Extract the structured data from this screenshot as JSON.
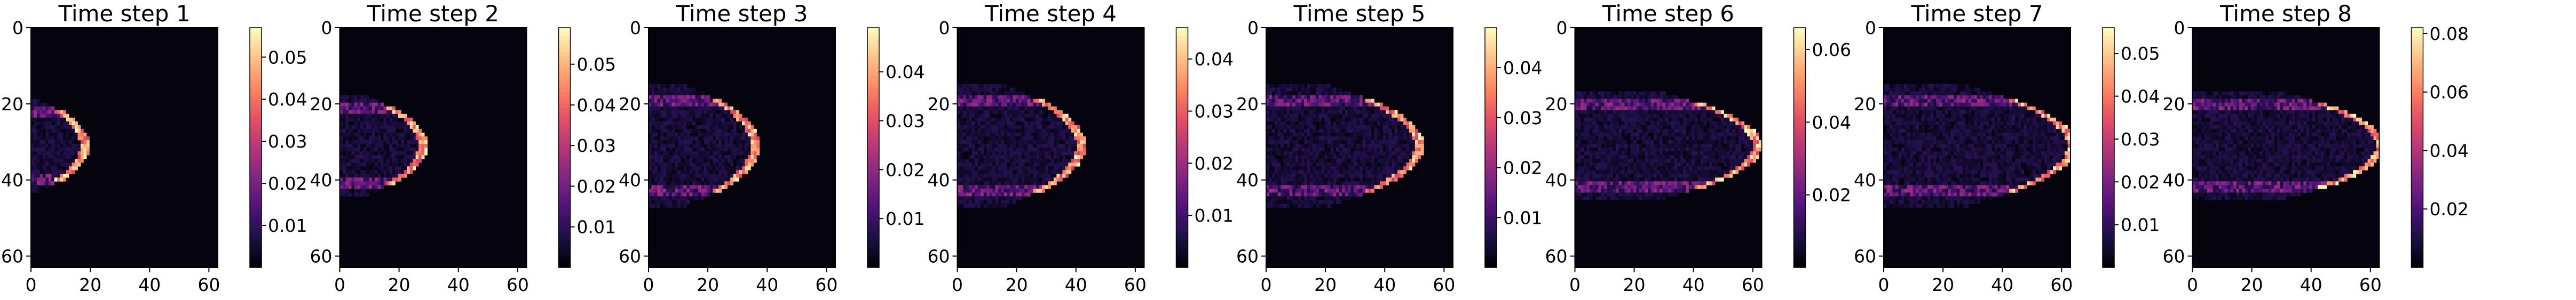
{
  "chart_data": [
    {
      "type": "heatmap",
      "title": "Time step 1",
      "xlim": [
        0,
        63
      ],
      "ylim": [
        63,
        0
      ],
      "xticks": [
        0,
        20,
        40,
        60
      ],
      "yticks": [
        0,
        20,
        40,
        60
      ],
      "colormap": "magma",
      "colorbar": {
        "min": 0,
        "max": 0.057,
        "ticks": [
          0.01,
          0.02,
          0.03,
          0.04,
          0.05
        ]
      },
      "front_x": 18,
      "front_halfwidth": 9
    },
    {
      "type": "heatmap",
      "title": "Time step 2",
      "xlim": [
        0,
        63
      ],
      "ylim": [
        63,
        0
      ],
      "xticks": [
        0,
        20,
        40,
        60
      ],
      "yticks": [
        0,
        20,
        40,
        60
      ],
      "colormap": "magma",
      "colorbar": {
        "min": 0,
        "max": 0.059,
        "ticks": [
          0.01,
          0.02,
          0.03,
          0.04,
          0.05
        ]
      },
      "front_x": 28,
      "front_halfwidth": 10
    },
    {
      "type": "heatmap",
      "title": "Time step 3",
      "xlim": [
        0,
        63
      ],
      "ylim": [
        63,
        0
      ],
      "xticks": [
        0,
        20,
        40,
        60
      ],
      "yticks": [
        0,
        20,
        40,
        60
      ],
      "colormap": "magma",
      "colorbar": {
        "min": 0,
        "max": 0.049,
        "ticks": [
          0.01,
          0.02,
          0.03,
          0.04
        ]
      },
      "front_x": 36,
      "front_halfwidth": 12
    },
    {
      "type": "heatmap",
      "title": "Time step 4",
      "xlim": [
        0,
        63
      ],
      "ylim": [
        63,
        0
      ],
      "xticks": [
        0,
        20,
        40,
        60
      ],
      "yticks": [
        0,
        20,
        40,
        60
      ],
      "colormap": "magma",
      "colorbar": {
        "min": 0,
        "max": 0.046,
        "ticks": [
          0.01,
          0.02,
          0.03,
          0.04
        ]
      },
      "front_x": 42,
      "front_halfwidth": 12
    },
    {
      "type": "heatmap",
      "title": "Time step 5",
      "xlim": [
        0,
        63
      ],
      "ylim": [
        63,
        0
      ],
      "xticks": [
        0,
        20,
        40,
        60
      ],
      "yticks": [
        0,
        20,
        40,
        60
      ],
      "colormap": "magma",
      "colorbar": {
        "min": 0,
        "max": 0.048,
        "ticks": [
          0.01,
          0.02,
          0.03,
          0.04
        ]
      },
      "front_x": 52,
      "front_halfwidth": 12
    },
    {
      "type": "heatmap",
      "title": "Time step 6",
      "xlim": [
        0,
        63
      ],
      "ylim": [
        63,
        0
      ],
      "xticks": [
        0,
        20,
        40,
        60
      ],
      "yticks": [
        0,
        20,
        40,
        60
      ],
      "colormap": "magma",
      "colorbar": {
        "min": 0,
        "max": 0.066,
        "ticks": [
          0.02,
          0.04,
          0.06
        ]
      },
      "front_x": 62,
      "front_halfwidth": 11
    },
    {
      "type": "heatmap",
      "title": "Time step 7",
      "xlim": [
        0,
        63
      ],
      "ylim": [
        63,
        0
      ],
      "xticks": [
        0,
        20,
        40,
        60
      ],
      "yticks": [
        0,
        20,
        40,
        60
      ],
      "colormap": "magma",
      "colorbar": {
        "min": 0,
        "max": 0.056,
        "ticks": [
          0.01,
          0.02,
          0.03,
          0.04,
          0.05
        ]
      },
      "front_x": 64,
      "front_halfwidth": 12
    },
    {
      "type": "heatmap",
      "title": "Time step 8",
      "xlim": [
        0,
        63
      ],
      "ylim": [
        63,
        0
      ],
      "xticks": [
        0,
        20,
        40,
        60
      ],
      "yticks": [
        0,
        20,
        40,
        60
      ],
      "colormap": "magma",
      "colorbar": {
        "min": 0,
        "max": 0.082,
        "ticks": [
          0.02,
          0.04,
          0.06,
          0.08
        ]
      },
      "front_x": 64,
      "front_halfwidth": 11
    }
  ]
}
